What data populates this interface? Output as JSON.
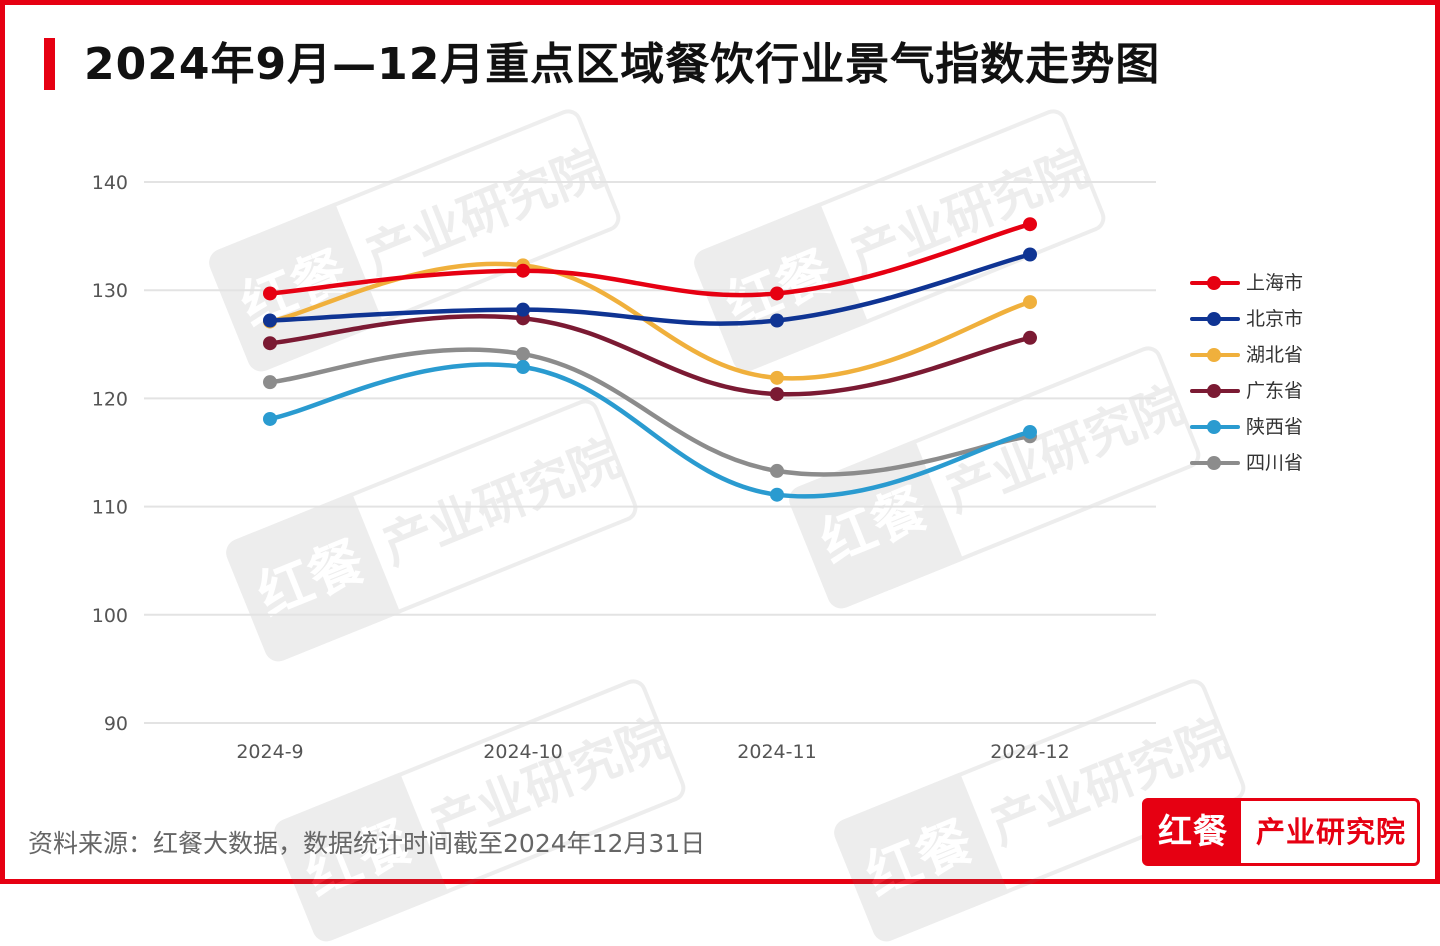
{
  "title": "2024年9月—12月重点区域餐饮行业景气指数走势图",
  "source": "资料来源：红餐大数据，数据统计时间截至2024年12月31日",
  "logo": {
    "left_text": "红餐",
    "right_text": "产业研究院"
  },
  "watermark": {
    "left_text": "红餐",
    "right_text": "产业研究院"
  },
  "colors": {
    "accent": "#e60012",
    "grid": "#e3e3e3",
    "axis_text": "#555555"
  },
  "chart_data": {
    "type": "line",
    "title": "2024年9月—12月重点区域餐饮行业景气指数走势图",
    "categories": [
      "2024-9",
      "2024-10",
      "2024-11",
      "2024-12"
    ],
    "ylim": [
      90,
      140
    ],
    "yticks": [
      90,
      100,
      110,
      120,
      130,
      140
    ],
    "grid": true,
    "smooth": true,
    "legend_position": "right",
    "series": [
      {
        "name": "上海市",
        "color": "#e60012",
        "values": [
          129.7,
          131.8,
          129.7,
          136.1
        ]
      },
      {
        "name": "北京市",
        "color": "#0f3493",
        "values": [
          127.2,
          128.2,
          127.2,
          133.3
        ]
      },
      {
        "name": "湖北省",
        "color": "#f0b03c",
        "values": [
          127.1,
          132.3,
          121.9,
          128.9
        ]
      },
      {
        "name": "广东省",
        "color": "#7b1a33",
        "values": [
          125.1,
          127.4,
          120.4,
          125.6
        ]
      },
      {
        "name": "陕西省",
        "color": "#2a9bd0",
        "values": [
          118.1,
          122.9,
          111.1,
          116.9
        ]
      },
      {
        "name": "四川省",
        "color": "#8c8c8c",
        "values": [
          121.5,
          124.1,
          113.3,
          116.5
        ]
      }
    ]
  }
}
